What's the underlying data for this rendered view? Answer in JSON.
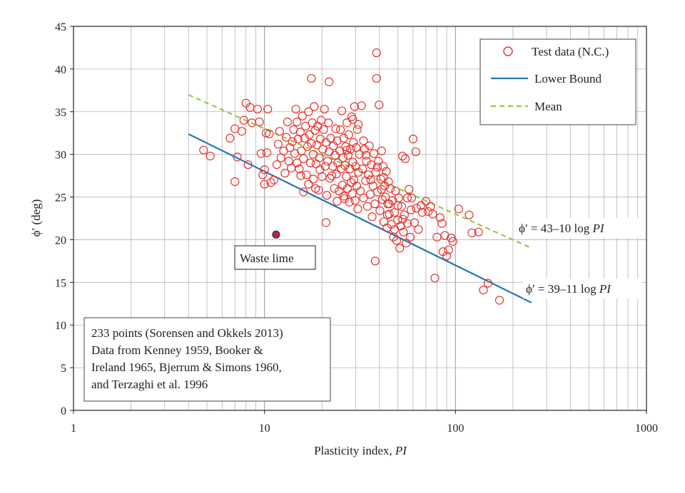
{
  "chart_data": {
    "type": "scatter",
    "xscale": "log",
    "xlabel": "Plasticity index, ",
    "xlabel_italic": "PI",
    "ylabel": "ϕ′ (deg)",
    "xlim": [
      1,
      1000
    ],
    "ylim": [
      0,
      45
    ],
    "grid": true,
    "x_ticks": [
      1,
      10,
      100,
      1000
    ],
    "x_tick_labels": [
      "1",
      "10",
      "100",
      "1000"
    ],
    "y_ticks": [
      0,
      5,
      10,
      15,
      20,
      25,
      30,
      35,
      40,
      45
    ],
    "y_tick_labels": [
      "0",
      "5",
      "10",
      "15",
      "20",
      "25",
      "30",
      "35",
      "40",
      "45"
    ],
    "legend": {
      "placement": "top-right",
      "entries": [
        {
          "label": "Test data (N.C.)",
          "kind": "marker",
          "color": "#e8322e"
        },
        {
          "label": "Lower Bound",
          "kind": "line",
          "color": "#1f77b4"
        },
        {
          "label": "Mean",
          "kind": "dashed",
          "color": "#8dc63f"
        }
      ]
    },
    "lines": [
      {
        "name": "Mean",
        "equation_label": "ϕ′ = 43–10 log ",
        "equation_italic": "PI",
        "intercept": 43,
        "slope": -10,
        "x_range": [
          4,
          250
        ],
        "color": "#8dc63f",
        "dashed": true
      },
      {
        "name": "Lower Bound",
        "equation_label": "ϕ′ = 39–11 log ",
        "equation_italic": "PI",
        "intercept": 39,
        "slope": -11,
        "x_range": [
          4,
          250
        ],
        "color": "#1f77b4",
        "dashed": false
      }
    ],
    "special_point": {
      "label": "Waste lime",
      "x": 11.5,
      "y": 20.6,
      "color": "#cc2222"
    },
    "note_lines": [
      "233 points (Sorensen and Okkels 2013)",
      "Data from Kenney 1959, Booker &",
      "Ireland 1965, Bjerrum & Simons 1960,",
      "and Terzaghi et al. 1996"
    ],
    "series": [
      {
        "name": "Test data (N.C.)",
        "points": [
          [
            4.8,
            30.5
          ],
          [
            5.2,
            29.8
          ],
          [
            6.6,
            31.9
          ],
          [
            7.0,
            33.0
          ],
          [
            7.0,
            26.8
          ],
          [
            7.2,
            29.7
          ],
          [
            7.6,
            32.7
          ],
          [
            7.8,
            34.0
          ],
          [
            8.0,
            36.0
          ],
          [
            8.2,
            28.8
          ],
          [
            8.4,
            35.5
          ],
          [
            8.6,
            33.7
          ],
          [
            9.2,
            35.3
          ],
          [
            9.4,
            33.8
          ],
          [
            9.6,
            30.1
          ],
          [
            9.8,
            27.6
          ],
          [
            10.0,
            28.2
          ],
          [
            10.0,
            26.5
          ],
          [
            10.2,
            32.5
          ],
          [
            10.3,
            30.2
          ],
          [
            10.4,
            35.3
          ],
          [
            10.6,
            32.4
          ],
          [
            10.8,
            26.7
          ],
          [
            11.2,
            27.0
          ],
          [
            11.6,
            28.8
          ],
          [
            11.8,
            31.2
          ],
          [
            12.0,
            32.7
          ],
          [
            12.2,
            29.6
          ],
          [
            12.6,
            30.4
          ],
          [
            12.8,
            27.8
          ],
          [
            13.0,
            32.0
          ],
          [
            13.2,
            33.8
          ],
          [
            13.4,
            29.2
          ],
          [
            13.6,
            30.8
          ],
          [
            13.8,
            28.4
          ],
          [
            14.0,
            31.5
          ],
          [
            14.2,
            32.9
          ],
          [
            14.4,
            30.1
          ],
          [
            14.6,
            35.3
          ],
          [
            14.8,
            29.0
          ],
          [
            14.8,
            33.8
          ],
          [
            15.0,
            31.8
          ],
          [
            15.2,
            28.3
          ],
          [
            15.4,
            32.6
          ],
          [
            15.6,
            30.4
          ],
          [
            15.8,
            34.5
          ],
          [
            16.0,
            25.6
          ],
          [
            16.0,
            29.5
          ],
          [
            16.2,
            31.9
          ],
          [
            16.4,
            33.3
          ],
          [
            16.6,
            27.6
          ],
          [
            16.8,
            30.9
          ],
          [
            17.0,
            35.0
          ],
          [
            17.2,
            32.3
          ],
          [
            17.4,
            29.0
          ],
          [
            17.6,
            31.3
          ],
          [
            17.8,
            33.7
          ],
          [
            18.0,
            27.1
          ],
          [
            18.0,
            30.0
          ],
          [
            18.2,
            35.6
          ],
          [
            18.4,
            32.8
          ],
          [
            18.6,
            28.9
          ],
          [
            18.8,
            31.1
          ],
          [
            19.0,
            33.3
          ],
          [
            19.2,
            25.8
          ],
          [
            19.4,
            29.6
          ],
          [
            19.6,
            31.8
          ],
          [
            19.8,
            34.0
          ],
          [
            20.0,
            27.4
          ],
          [
            20.2,
            30.6
          ],
          [
            20.4,
            32.9
          ],
          [
            20.6,
            35.3
          ],
          [
            20.8,
            28.6
          ],
          [
            21.0,
            31.4
          ],
          [
            21.2,
            25.2
          ],
          [
            21.4,
            29.2
          ],
          [
            21.6,
            33.7
          ],
          [
            21.8,
            30.3
          ],
          [
            22.0,
            27.2
          ],
          [
            22.2,
            31.9
          ],
          [
            17.6,
            38.9
          ],
          [
            21.8,
            38.5
          ],
          [
            22.8,
            28.6
          ],
          [
            23.0,
            31.0
          ],
          [
            23.2,
            26.0
          ],
          [
            23.4,
            29.9
          ],
          [
            23.6,
            33.0
          ],
          [
            23.8,
            27.7
          ],
          [
            24.0,
            31.6
          ],
          [
            24.2,
            29.0
          ],
          [
            24.6,
            25.7
          ],
          [
            24.8,
            30.4
          ],
          [
            25.0,
            32.9
          ],
          [
            25.2,
            28.3
          ],
          [
            25.4,
            35.1
          ],
          [
            25.6,
            26.4
          ],
          [
            25.8,
            29.6
          ],
          [
            26.0,
            31.9
          ],
          [
            26.2,
            24.8
          ],
          [
            26.4,
            28.7
          ],
          [
            26.6,
            30.9
          ],
          [
            26.8,
            27.4
          ],
          [
            27.0,
            33.7
          ],
          [
            27.2,
            26.0
          ],
          [
            27.4,
            29.9
          ],
          [
            27.6,
            32.3
          ],
          [
            27.8,
            24.4
          ],
          [
            28.0,
            28.3
          ],
          [
            28.2,
            30.6
          ],
          [
            28.4,
            26.7
          ],
          [
            28.6,
            34.4
          ],
          [
            28.8,
            25.4
          ],
          [
            29.0,
            29.1
          ],
          [
            29.2,
            31.4
          ],
          [
            29.4,
            27.0
          ],
          [
            29.6,
            35.6
          ],
          [
            29.8,
            24.6
          ],
          [
            30.0,
            28.6
          ],
          [
            30.2,
            30.8
          ],
          [
            30.4,
            26.3
          ],
          [
            30.6,
            32.9
          ],
          [
            30.8,
            23.6
          ],
          [
            31.0,
            27.9
          ],
          [
            31.4,
            30.0
          ],
          [
            31.8,
            25.7
          ],
          [
            32.2,
            35.7
          ],
          [
            32.6,
            28.3
          ],
          [
            33.0,
            24.9
          ],
          [
            33.4,
            30.6
          ],
          [
            33.8,
            26.9
          ],
          [
            34.2,
            29.2
          ],
          [
            34.6,
            23.9
          ],
          [
            35.0,
            27.6
          ],
          [
            35.4,
            31.0
          ],
          [
            35.8,
            25.3
          ],
          [
            36.2,
            28.8
          ],
          [
            36.6,
            22.7
          ],
          [
            37.0,
            26.3
          ],
          [
            37.4,
            30.1
          ],
          [
            37.8,
            24.2
          ],
          [
            38.2,
            27.9
          ],
          [
            38.6,
            41.9
          ],
          [
            38.6,
            38.9
          ],
          [
            39.0,
            25.6
          ],
          [
            39.4,
            29.2
          ],
          [
            39.8,
            35.8
          ],
          [
            40.2,
            23.4
          ],
          [
            40.6,
            27.1
          ],
          [
            41.0,
            30.4
          ],
          [
            41.4,
            24.7
          ],
          [
            41.8,
            28.6
          ],
          [
            42.2,
            22.1
          ],
          [
            42.6,
            26.3
          ],
          [
            43.0,
            25.0
          ],
          [
            43.4,
            28.0
          ],
          [
            43.8,
            21.4
          ],
          [
            44.2,
            24.2
          ],
          [
            44.6,
            26.8
          ],
          [
            45.0,
            23.0
          ],
          [
            45.6,
            26.0
          ],
          [
            46.2,
            21.8
          ],
          [
            46.8,
            24.6
          ],
          [
            47.4,
            20.3
          ],
          [
            48.0,
            23.2
          ],
          [
            48.6,
            25.7
          ],
          [
            49.2,
            19.9
          ],
          [
            49.8,
            22.3
          ],
          [
            50.4,
            24.9
          ],
          [
            51.0,
            19.0
          ],
          [
            51.6,
            21.6
          ],
          [
            52.2,
            23.9
          ],
          [
            52.8,
            29.8
          ],
          [
            53.4,
            20.9
          ],
          [
            54.0,
            22.9
          ],
          [
            54.6,
            29.5
          ],
          [
            55.2,
            19.6
          ],
          [
            56.0,
            21.9
          ],
          [
            57.0,
            25.9
          ],
          [
            58.0,
            20.3
          ],
          [
            59.0,
            24.9
          ],
          [
            60.0,
            31.8
          ],
          [
            61.0,
            22.0
          ],
          [
            62.0,
            30.3
          ],
          [
            64.0,
            21.2
          ],
          [
            67.0,
            23.2
          ],
          [
            70.0,
            24.5
          ],
          [
            74.0,
            23.9
          ],
          [
            76.0,
            23.0
          ],
          [
            78.0,
            15.5
          ],
          [
            80.0,
            20.3
          ],
          [
            83.0,
            22.6
          ],
          [
            86.0,
            18.6
          ],
          [
            88.0,
            20.5
          ],
          [
            90.0,
            18.1
          ],
          [
            92.0,
            18.8
          ],
          [
            97.0,
            19.8
          ],
          [
            104.0,
            23.6
          ],
          [
            118.0,
            22.9
          ],
          [
            122.0,
            20.8
          ],
          [
            132.0,
            20.9
          ],
          [
            140.0,
            14.1
          ],
          [
            148.0,
            14.9
          ],
          [
            170.0,
            12.9
          ],
          [
            38.0,
            17.5
          ],
          [
            26.0,
            25.1
          ],
          [
            34.0,
            29.9
          ],
          [
            41.0,
            25.9
          ],
          [
            45.0,
            24.2
          ],
          [
            17.0,
            26.5
          ],
          [
            19.5,
            28.2
          ],
          [
            22.5,
            27.5
          ],
          [
            24.0,
            24.5
          ],
          [
            27.0,
            30.5
          ],
          [
            29.0,
            34.1
          ],
          [
            31.0,
            33.5
          ],
          [
            33.0,
            31.6
          ],
          [
            36.0,
            27.0
          ],
          [
            39.0,
            28.5
          ],
          [
            42.0,
            27.3
          ],
          [
            44.0,
            22.9
          ],
          [
            48.0,
            21.2
          ],
          [
            50.0,
            24.0
          ],
          [
            53.0,
            22.4
          ],
          [
            56.0,
            24.9
          ],
          [
            58.5,
            23.5
          ],
          [
            62.5,
            23.7
          ],
          [
            66.0,
            24.0
          ],
          [
            72.0,
            23.3
          ],
          [
            85.0,
            21.9
          ],
          [
            95.0,
            20.2
          ],
          [
            15.5,
            27.5
          ],
          [
            18.5,
            26.0
          ],
          [
            21.0,
            22.0
          ]
        ]
      }
    ]
  }
}
